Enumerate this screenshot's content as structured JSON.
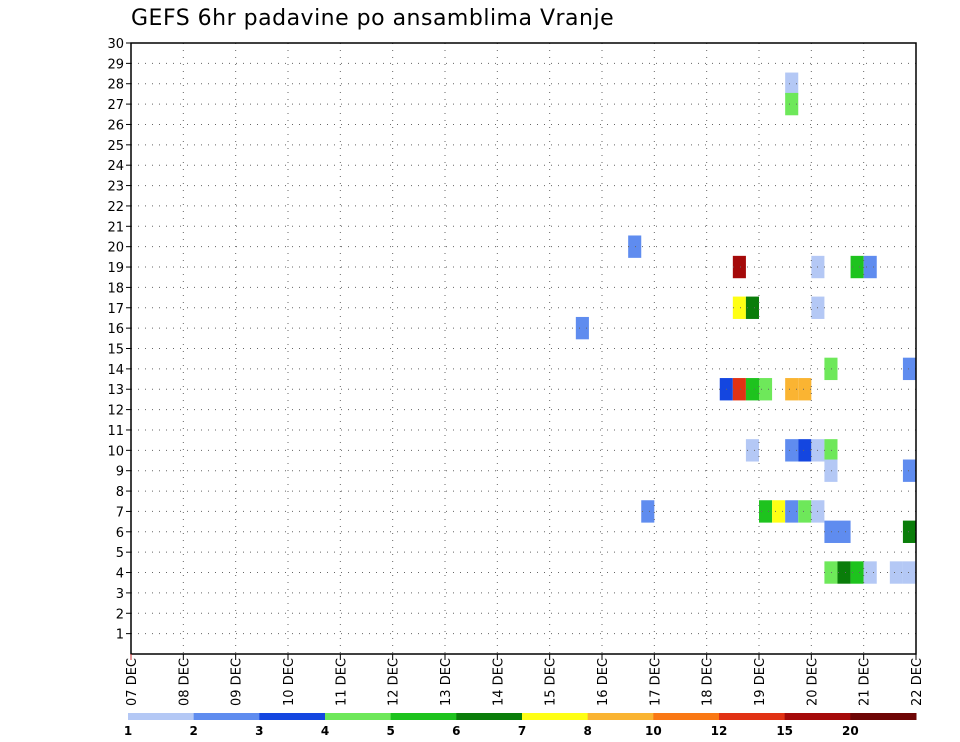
{
  "chart_data": {
    "type": "heatmap",
    "title": "GEFS 6hr padavine po ansamblima Vranje",
    "xlabel": "",
    "ylabel": "",
    "x_tick_labels": [
      "07 DEC",
      "08 DEC",
      "09 DEC",
      "10 DEC",
      "11 DEC",
      "12 DEC",
      "13 DEC",
      "14 DEC",
      "15 DEC",
      "16 DEC",
      "17 DEC",
      "18 DEC",
      "19 DEC",
      "20 DEC",
      "21 DEC",
      "22 DEC"
    ],
    "xlim_days": [
      0,
      15
    ],
    "ylim_members": [
      0,
      30
    ],
    "y_ticks": [
      1,
      2,
      3,
      4,
      5,
      6,
      7,
      8,
      9,
      10,
      11,
      12,
      13,
      14,
      15,
      16,
      17,
      18,
      19,
      20,
      21,
      22,
      23,
      24,
      25,
      26,
      27,
      28,
      29,
      30
    ],
    "time_step_days": 0.25,
    "grid": true,
    "legend": {
      "placement": "bottom",
      "labels": [
        "1",
        "2",
        "3",
        "4",
        "5",
        "6",
        "7",
        "8",
        "10",
        "12",
        "15",
        "20"
      ],
      "colors": [
        "#b4c8f5",
        "#5f8cef",
        "#1446e0",
        "#6ee85a",
        "#1ec31e",
        "#0a7d0a",
        "#ffff14",
        "#fab432",
        "#fa7814",
        "#e13214",
        "#a50a0a",
        "#6e0606"
      ]
    },
    "cells": [
      {
        "member": 28,
        "day": 12.5,
        "level": 1
      },
      {
        "member": 27,
        "day": 12.5,
        "level": 4
      },
      {
        "member": 20,
        "day": 9.5,
        "level": 2
      },
      {
        "member": 19,
        "day": 11.5,
        "level": 11
      },
      {
        "member": 19,
        "day": 13.0,
        "level": 1
      },
      {
        "member": 19,
        "day": 13.75,
        "level": 5
      },
      {
        "member": 19,
        "day": 14.0,
        "level": 2
      },
      {
        "member": 17,
        "day": 11.5,
        "level": 7
      },
      {
        "member": 17,
        "day": 11.75,
        "level": 6
      },
      {
        "member": 17,
        "day": 13.0,
        "level": 1
      },
      {
        "member": 16,
        "day": 8.5,
        "level": 2
      },
      {
        "member": 14,
        "day": 13.25,
        "level": 4
      },
      {
        "member": 14,
        "day": 14.75,
        "level": 2
      },
      {
        "member": 13,
        "day": 11.25,
        "level": 3
      },
      {
        "member": 13,
        "day": 11.5,
        "level": 10
      },
      {
        "member": 13,
        "day": 11.75,
        "level": 5
      },
      {
        "member": 13,
        "day": 12.0,
        "level": 4
      },
      {
        "member": 13,
        "day": 12.5,
        "level": 8
      },
      {
        "member": 13,
        "day": 12.75,
        "level": 8
      },
      {
        "member": 10,
        "day": 11.75,
        "level": 1
      },
      {
        "member": 10,
        "day": 12.5,
        "level": 2
      },
      {
        "member": 10,
        "day": 12.75,
        "level": 3
      },
      {
        "member": 10,
        "day": 13.0,
        "level": 1
      },
      {
        "member": 10,
        "day": 13.25,
        "level": 4
      },
      {
        "member": 9,
        "day": 13.25,
        "level": 1
      },
      {
        "member": 9,
        "day": 14.75,
        "level": 2
      },
      {
        "member": 7,
        "day": 9.75,
        "level": 2
      },
      {
        "member": 7,
        "day": 12.0,
        "level": 5
      },
      {
        "member": 7,
        "day": 12.25,
        "level": 7
      },
      {
        "member": 7,
        "day": 12.5,
        "level": 2
      },
      {
        "member": 7,
        "day": 12.75,
        "level": 4
      },
      {
        "member": 7,
        "day": 13.0,
        "level": 1
      },
      {
        "member": 6,
        "day": 13.25,
        "level": 2
      },
      {
        "member": 6,
        "day": 13.5,
        "level": 2
      },
      {
        "member": 6,
        "day": 14.75,
        "level": 6
      },
      {
        "member": 4,
        "day": 13.25,
        "level": 4
      },
      {
        "member": 4,
        "day": 13.5,
        "level": 6
      },
      {
        "member": 4,
        "day": 13.75,
        "level": 5
      },
      {
        "member": 4,
        "day": 14.0,
        "level": 1
      },
      {
        "member": 4,
        "day": 14.5,
        "level": 1
      },
      {
        "member": 4,
        "day": 14.75,
        "level": 1
      }
    ]
  }
}
